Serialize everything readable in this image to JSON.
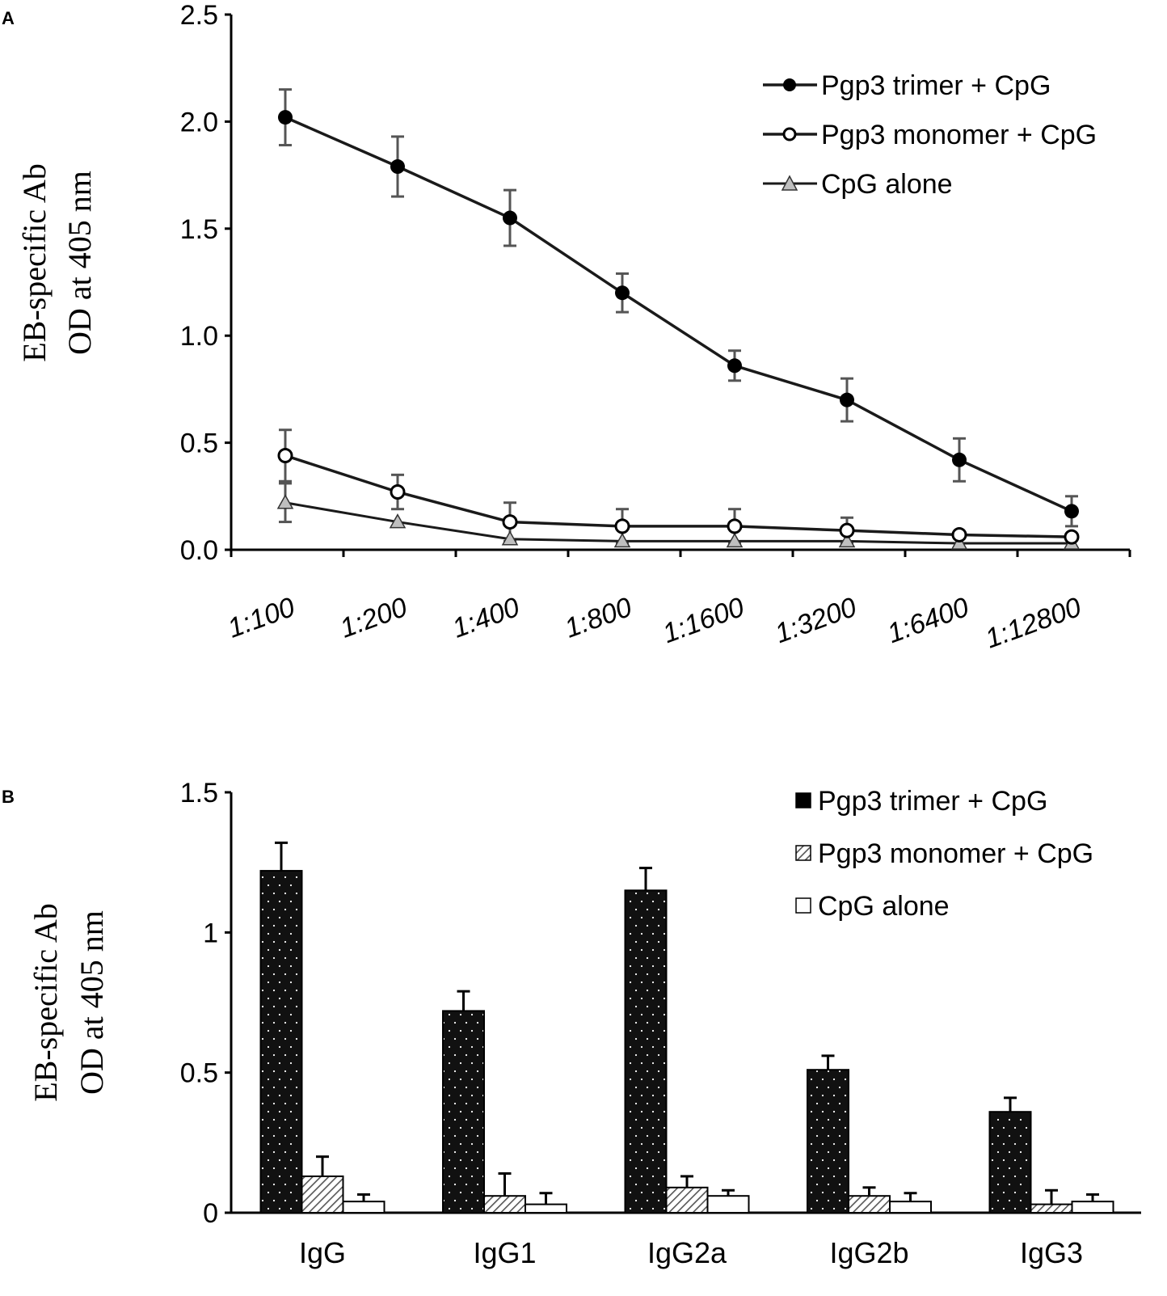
{
  "chart_data": [
    {
      "panel_label": "A",
      "type": "line",
      "title": "",
      "ylabel_lines": [
        "EB-specific Ab",
        "OD at 405 nm"
      ],
      "xlabel": "",
      "categories": [
        "1:100",
        "1:200",
        "1:400",
        "1:800",
        "1:1600",
        "1:3200",
        "1:6400",
        "1:12800"
      ],
      "ylim": [
        0,
        2.5
      ],
      "yticks": [
        "0.0",
        "0.5",
        "1.0",
        "1.5",
        "2.0",
        "2.5"
      ],
      "tick_values": [
        0,
        0.5,
        1.0,
        1.5,
        2.0,
        2.5
      ],
      "legend_position": "top-right",
      "series": [
        {
          "name": "Pgp3 trimer + CpG",
          "marker": "filled-circle",
          "values": [
            2.02,
            1.79,
            1.55,
            1.2,
            0.86,
            0.7,
            0.42,
            0.18
          ],
          "errors": [
            0.13,
            0.14,
            0.13,
            0.09,
            0.07,
            0.1,
            0.1,
            0.07
          ]
        },
        {
          "name": "Pgp3 monomer + CpG",
          "marker": "open-circle",
          "values": [
            0.44,
            0.27,
            0.13,
            0.11,
            0.11,
            0.09,
            0.07,
            0.06
          ],
          "errors": [
            0.12,
            0.08,
            0.09,
            0.08,
            0.08,
            0.06,
            0.0,
            0.0
          ]
        },
        {
          "name": "CpG alone",
          "marker": "triangle",
          "values": [
            0.22,
            0.13,
            0.05,
            0.04,
            0.04,
            0.04,
            0.03,
            0.03
          ],
          "errors": [
            0.09,
            0.0,
            0.0,
            0.0,
            0.0,
            0.0,
            0.0,
            0.0
          ]
        }
      ]
    },
    {
      "panel_label": "B",
      "type": "bar",
      "title": "",
      "ylabel_lines": [
        "EB-specific Ab",
        "OD at 405 nm"
      ],
      "xlabel": "",
      "categories": [
        "IgG",
        "IgG1",
        "IgG2a",
        "IgG2b",
        "IgG3"
      ],
      "ylim": [
        0,
        1.5
      ],
      "yticks": [
        "0",
        "0.5",
        "1",
        "1.5"
      ],
      "tick_values": [
        0,
        0.5,
        1,
        1.5
      ],
      "legend_position": "top-right",
      "series": [
        {
          "name": "Pgp3 trimer + CpG",
          "fill": "dotted-black",
          "values": [
            1.22,
            0.72,
            1.15,
            0.51,
            0.36
          ],
          "errors": [
            0.1,
            0.07,
            0.08,
            0.05,
            0.05
          ]
        },
        {
          "name": "Pgp3 monomer + CpG",
          "fill": "hatched",
          "values": [
            0.13,
            0.06,
            0.09,
            0.06,
            0.03
          ],
          "errors": [
            0.07,
            0.08,
            0.04,
            0.03,
            0.05
          ]
        },
        {
          "name": "CpG alone",
          "fill": "white",
          "values": [
            0.04,
            0.03,
            0.06,
            0.04,
            0.04
          ],
          "errors": [
            0.025,
            0.04,
            0.02,
            0.03,
            0.025
          ]
        }
      ]
    }
  ],
  "colors": {
    "axis": "#000000",
    "line": "#1a1a1a",
    "error_bar": "#555555",
    "triangle_fill": "#bfbfbf",
    "hatch": "#555555",
    "bar_dark": "#111111"
  }
}
